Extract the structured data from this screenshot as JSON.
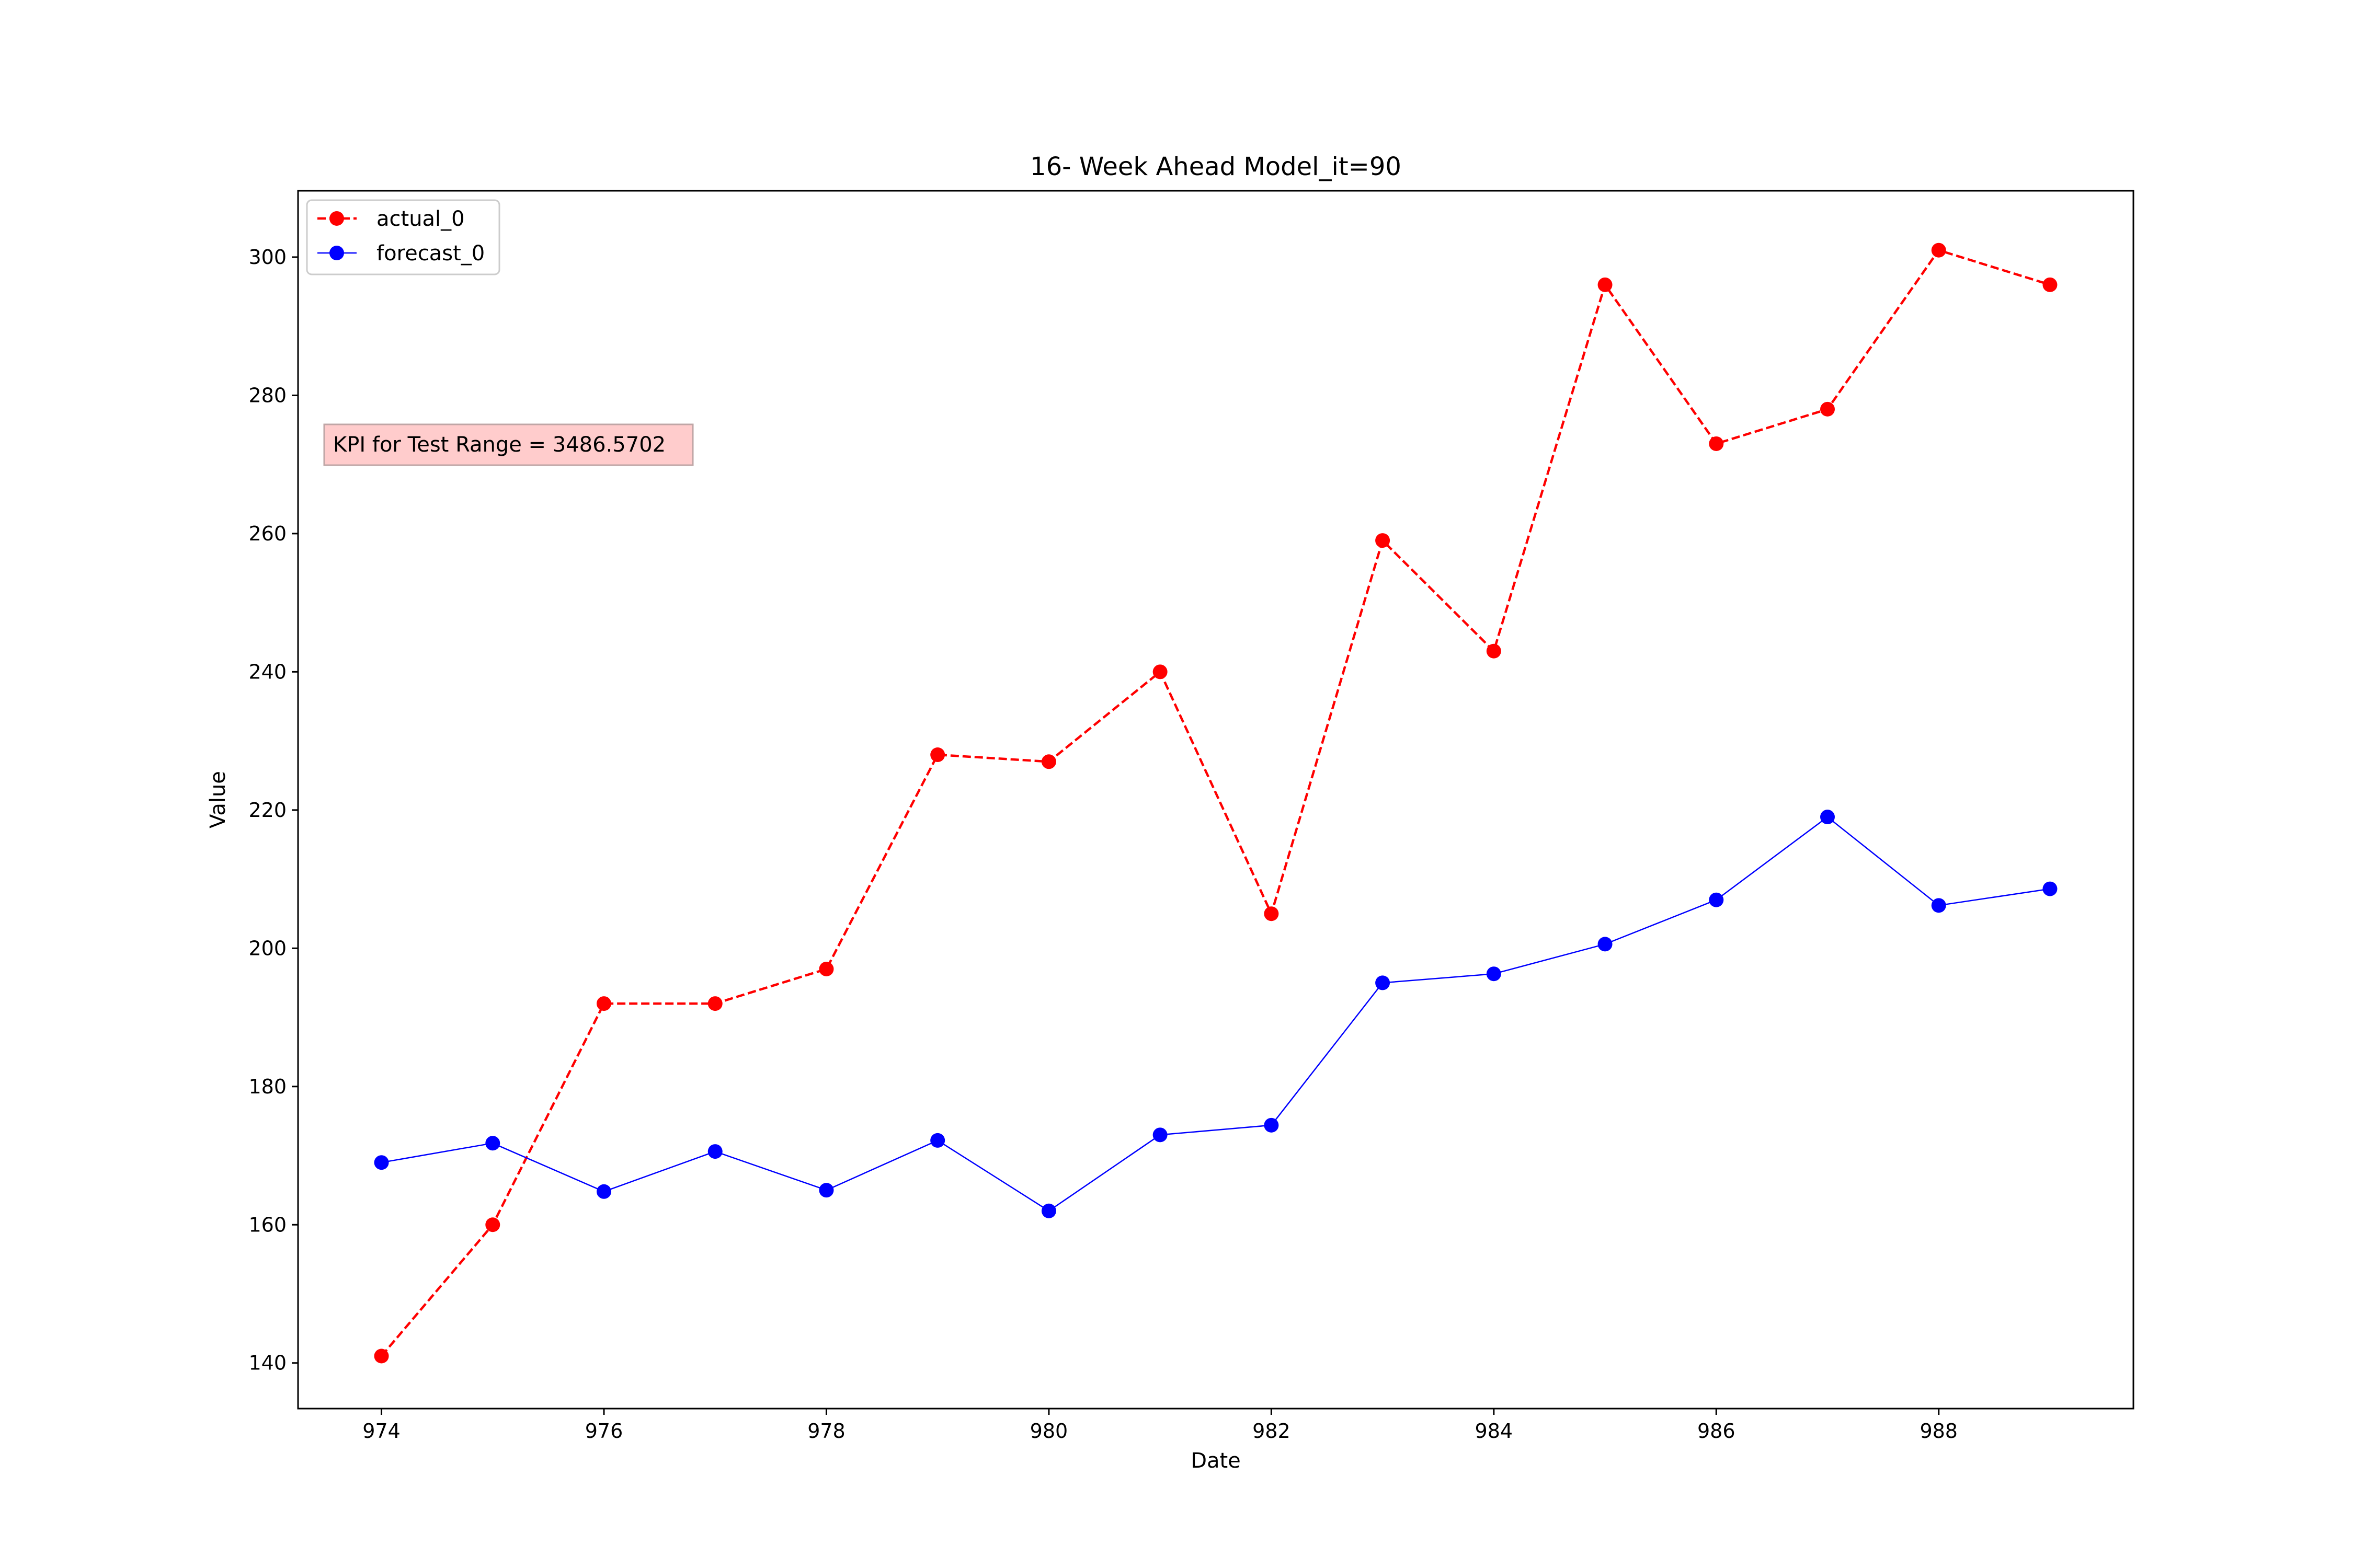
{
  "chart_data": {
    "type": "line",
    "title": "16- Week Ahead Model_it=90",
    "xlabel": "Date",
    "ylabel": "Value",
    "x": [
      974,
      975,
      976,
      977,
      978,
      979,
      980,
      981,
      982,
      983,
      984,
      985,
      986,
      987,
      988,
      989
    ],
    "xlim": [
      973.25,
      989.75
    ],
    "ylim": [
      133.4,
      309.6
    ],
    "xticks": [
      974,
      976,
      978,
      980,
      982,
      984,
      986,
      988
    ],
    "yticks": [
      140,
      160,
      180,
      200,
      220,
      240,
      260,
      280,
      300
    ],
    "grid": false,
    "legend_position": "top-left",
    "series": [
      {
        "name": "actual_0",
        "color": "#ff0000",
        "line_style": "dashed",
        "marker": "circle",
        "values": [
          141,
          160,
          192,
          192,
          197,
          228,
          227,
          240,
          205,
          259,
          243,
          296,
          273,
          278,
          301,
          296
        ]
      },
      {
        "name": "forecast_0",
        "color": "#0000ff",
        "line_style": "solid",
        "marker": "circle",
        "values": [
          169,
          171.8,
          164.8,
          170.6,
          165,
          172.2,
          162,
          173,
          174.4,
          195,
          196.3,
          200.6,
          207,
          219,
          206.2,
          208.6
        ]
      }
    ],
    "annotation": {
      "text": "KPI for Test Range = 3486.5702",
      "background": "#ffcccc"
    }
  }
}
